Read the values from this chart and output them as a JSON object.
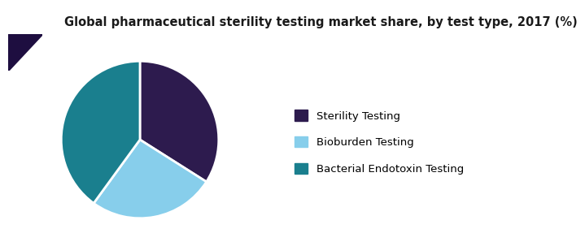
{
  "title": "Global pharmaceutical sterility testing market share, by test type, 2017 (%)",
  "labels": [
    "Sterility Testing",
    "Bioburden Testing",
    "Bacterial Endotoxin Testing"
  ],
  "values": [
    34,
    26,
    40
  ],
  "colors": [
    "#2d1b4e",
    "#87ceeb",
    "#1a7f8e"
  ],
  "startangle": 90,
  "legend_fontsize": 9.5,
  "title_fontsize": 10.5,
  "background_color": "#ffffff",
  "title_color": "#000000",
  "header_bar_color": "#5a2d82",
  "header_line_color": "#6a3d9f",
  "triangle_color": "#3d2070",
  "triangle_dark_color": "#1e0e40"
}
